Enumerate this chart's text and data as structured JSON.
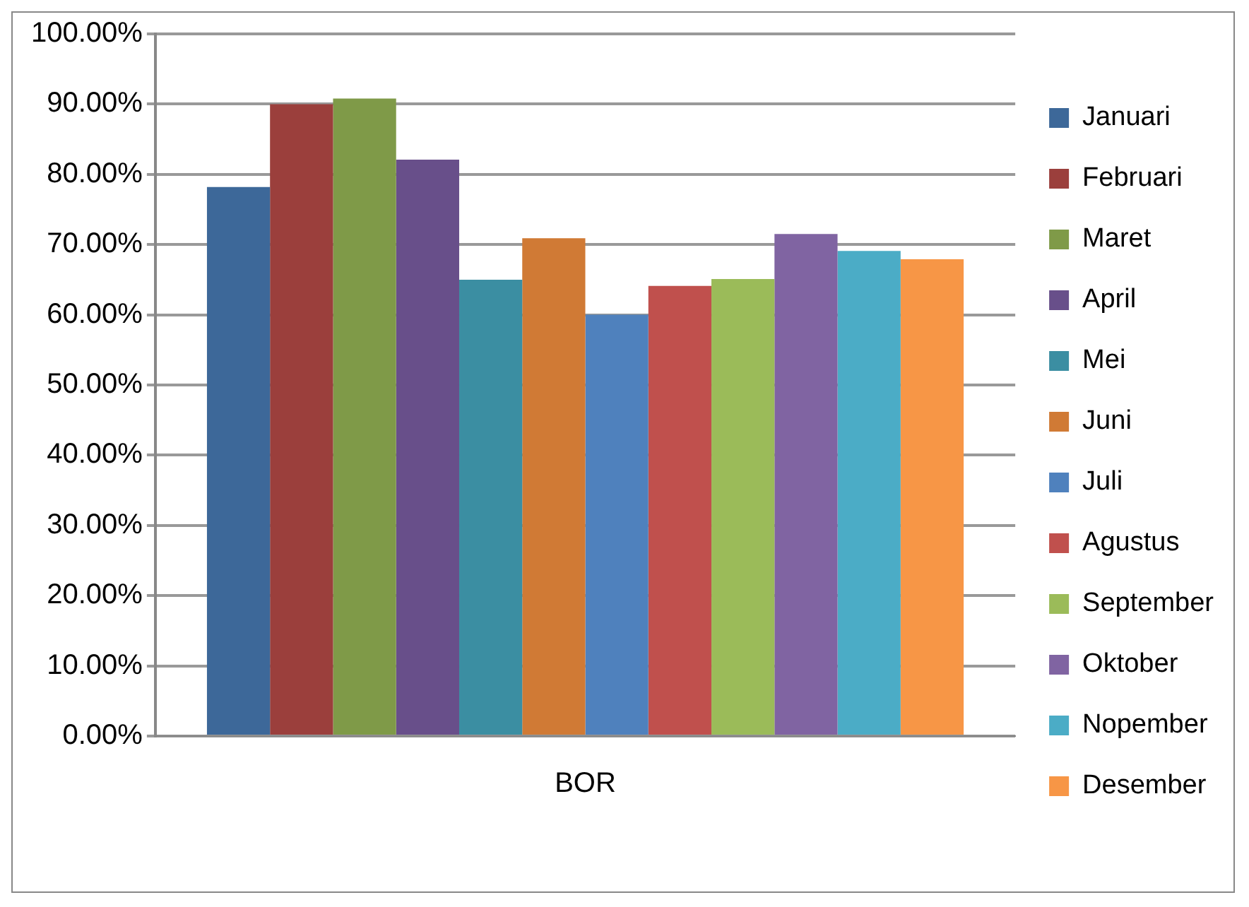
{
  "chart_data": {
    "type": "bar",
    "categories": [
      "BOR"
    ],
    "series": [
      {
        "name": "Januari",
        "color": "#3d6899",
        "values": [
          78.2
        ]
      },
      {
        "name": "Februari",
        "color": "#9b3f3c",
        "values": [
          90.0
        ]
      },
      {
        "name": "Maret",
        "color": "#7f9a48",
        "values": [
          90.8
        ]
      },
      {
        "name": "April",
        "color": "#684f8a",
        "values": [
          82.1
        ]
      },
      {
        "name": "Mei",
        "color": "#3b8ea2",
        "values": [
          65.0
        ]
      },
      {
        "name": "Juni",
        "color": "#d07a35",
        "values": [
          70.9
        ]
      },
      {
        "name": "Juli",
        "color": "#4f81bd",
        "values": [
          60.0
        ]
      },
      {
        "name": "Agustus",
        "color": "#c0504d",
        "values": [
          64.1
        ]
      },
      {
        "name": "September",
        "color": "#9bbb59",
        "values": [
          65.1
        ]
      },
      {
        "name": "Oktober",
        "color": "#8064a2",
        "values": [
          71.5
        ]
      },
      {
        "name": "Nopember",
        "color": "#4bacc6",
        "values": [
          69.1
        ]
      },
      {
        "name": "Desember",
        "color": "#f79646",
        "values": [
          67.9
        ]
      }
    ],
    "ylim": [
      0,
      100
    ],
    "yticks": [
      {
        "value": 0,
        "label": "0.00%"
      },
      {
        "value": 10,
        "label": "10.00%"
      },
      {
        "value": 20,
        "label": "20.00%"
      },
      {
        "value": 30,
        "label": "30.00%"
      },
      {
        "value": 40,
        "label": "40.00%"
      },
      {
        "value": 50,
        "label": "50.00%"
      },
      {
        "value": 60,
        "label": "60.00%"
      },
      {
        "value": 70,
        "label": "70.00%"
      },
      {
        "value": 80,
        "label": "80.00%"
      },
      {
        "value": 90,
        "label": "90.00%"
      },
      {
        "value": 100,
        "label": "100.00%"
      }
    ],
    "grid": "y",
    "legend": "right"
  }
}
